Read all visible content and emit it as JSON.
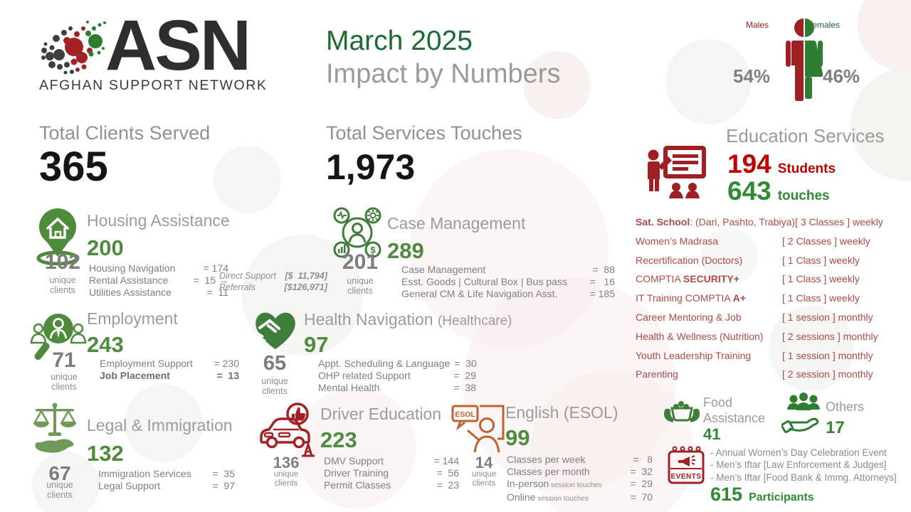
{
  "colors": {
    "green_dark": "#1d6b34",
    "green_number": "#4e8b3c",
    "green_strong": "#2f8a33",
    "red_bright": "#c00000",
    "red_brick": "#b04a45",
    "red_icon": "#a32125",
    "gray_title": "#9b9b9b"
  },
  "logo": {
    "acronym": "ASN",
    "name": "AFGHAN SUPPORT NETWORK"
  },
  "header": {
    "month": "March 2025",
    "title": "Impact by Numbers"
  },
  "gender": {
    "males_label": "Males",
    "females_label": "Females",
    "males_pct": "54%",
    "females_pct": "46%"
  },
  "totals": {
    "clients_label": "Total Clients Served",
    "clients_value": "365",
    "touches_label": "Total Services Touches",
    "touches_value": "1,973"
  },
  "labels": {
    "unique": "unique",
    "clients": "clients"
  },
  "education": {
    "title": "Education Services",
    "students_value": "194",
    "students_label": "Students",
    "touches_value": "643",
    "touches_label": "touches",
    "programs": [
      {
        "bold": "Sat. School",
        "post": ": (Dari, Pashto, Trabiya)",
        "schedule": "[ 3 Classes ] weekly"
      },
      {
        "pre": "Women’s Madrasa",
        "schedule": "[ 2 Classes ] weekly"
      },
      {
        "pre": "Recertification (Doctors)",
        "schedule": "[ 1 Class ]  weekly"
      },
      {
        "pre": "COMPTIA ",
        "bold": "SECURITY+",
        "schedule": "[ 1 Class ] weekly"
      },
      {
        "pre": "IT Training COMPTIA ",
        "bold": "A+",
        "schedule": "[ 1 Class ] weekly"
      },
      {
        "pre": "Career Mentoring & Job",
        "schedule": "[ 1 session ] monthly"
      },
      {
        "pre": "Health & Wellness (Nutrition)",
        "schedule": "[ 2 sessions ] monthly"
      },
      {
        "pre": "Youth Leadership Training",
        "schedule": "[ 1 session ] monthly"
      },
      {
        "pre": "Parenting",
        "schedule": "[ 2 session ] monthly"
      }
    ]
  },
  "sections": {
    "housing": {
      "title": "Housing Assistance",
      "total": "200",
      "unique": "102",
      "details": [
        {
          "label": "Housing Navigation",
          "value": "= 174"
        },
        {
          "label": "Rental Assistance",
          "value": "=  15 →"
        },
        {
          "label": "Utilities Assistance",
          "value": "=  11"
        }
      ],
      "note": [
        {
          "label": "Direct Support",
          "value": "[$  11,794]"
        },
        {
          "label": "Referrals",
          "value": "[$126,971]"
        }
      ]
    },
    "case_management": {
      "title": "Case Management",
      "total": "289",
      "unique": "201",
      "details": [
        {
          "label": "Case Management",
          "value": "=  88"
        },
        {
          "label": "Esst. Goods | Cultural Box | Bus pass",
          "value": "=   16"
        },
        {
          "label": "General CM & Life Navigation  Asst.",
          "value": "= 185"
        }
      ]
    },
    "employment": {
      "title": "Employment",
      "total": "243",
      "unique": "71",
      "details": [
        {
          "label": "Employment Support",
          "value": "= 230"
        },
        {
          "label": "Job Placement",
          "value": "=  13",
          "bold": true
        }
      ]
    },
    "health": {
      "title": "Health Navigation",
      "title_suffix": "(Healthcare)",
      "total": "97",
      "unique": "65",
      "details": [
        {
          "label": "Appt. Scheduling & Language",
          "value": "=  30"
        },
        {
          "label": "OHP related Support",
          "value": "=  29"
        },
        {
          "label": "Mental Health",
          "value": "=  38"
        }
      ]
    },
    "legal": {
      "title": "Legal & Immigration",
      "total": "132",
      "unique": "67",
      "details": [
        {
          "label": "Immigration Services",
          "value": "=  35"
        },
        {
          "label": "Legal Support",
          "value": "=  97"
        }
      ]
    },
    "driver": {
      "title": "Driver Education",
      "total": "223",
      "unique": "136",
      "details": [
        {
          "label": "DMV Support",
          "value": "= 144"
        },
        {
          "label": "Driver Training",
          "value": "=  56"
        },
        {
          "label": "Permit Classes",
          "value": "=  23"
        }
      ]
    },
    "esol": {
      "title": "English (ESOL)",
      "total": "99",
      "unique": "14",
      "icon_label": "ESOL",
      "details": [
        {
          "label": "Classes per week",
          "value": "=   8"
        },
        {
          "label": "Classes per month",
          "value": "=  32"
        },
        {
          "label": "In-person",
          "small": "session touches",
          "value": "=  29"
        },
        {
          "label": "Online",
          "small": "session touches",
          "value": "=  70"
        }
      ]
    }
  },
  "food": {
    "title_line1": "Food",
    "title_line2": "Assistance",
    "value": "41"
  },
  "others": {
    "title": "Others",
    "value": "17"
  },
  "events": {
    "icon_label": "EVENTS",
    "items": [
      "- Annual Women’s Day Celebration Event",
      "- Men’s Iftar [Law Enforcement & Judges]",
      "- Men’s Iftar [Food Bank & Immg. Attorneys]"
    ],
    "participants_value": "615",
    "participants_label": "Participants"
  }
}
